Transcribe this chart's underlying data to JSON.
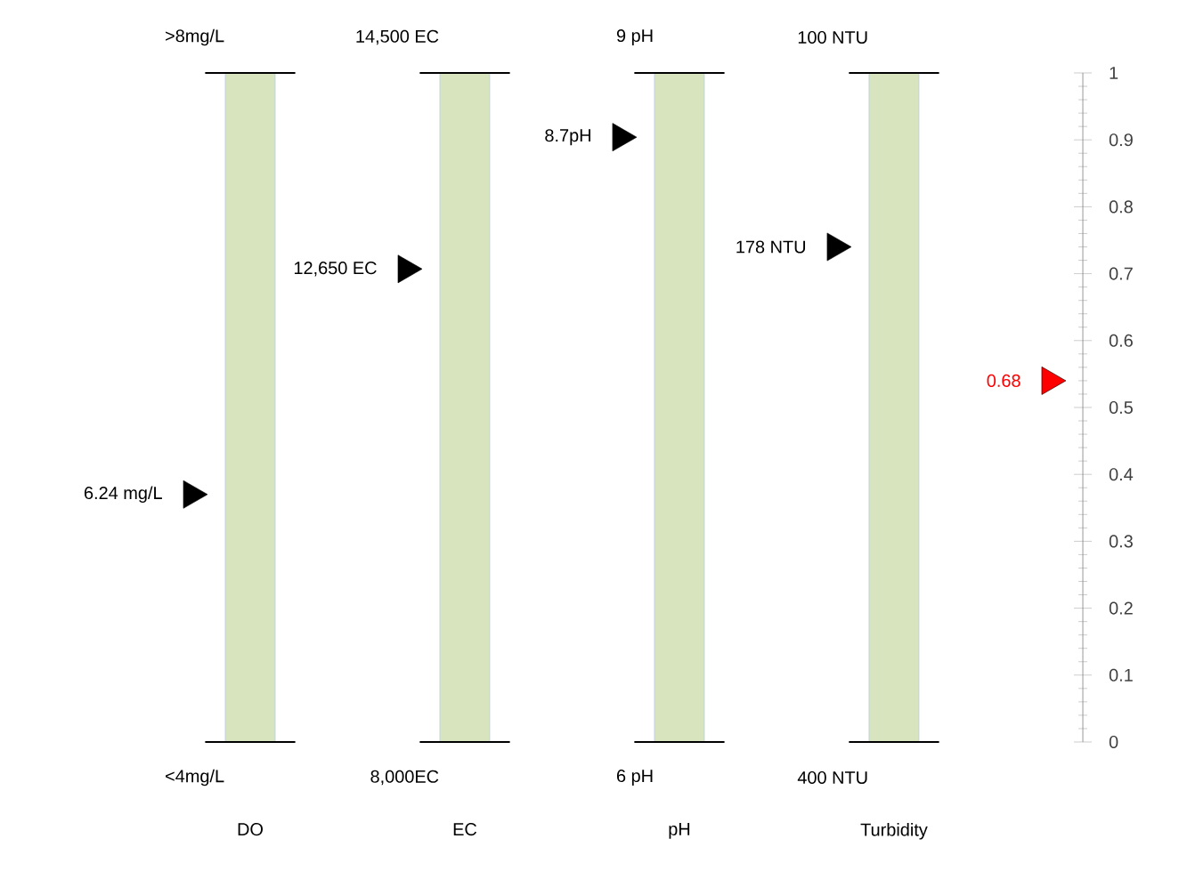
{
  "chart_data": {
    "type": "bar",
    "categories": [
      "DO",
      "EC",
      "pH",
      "Turbidity",
      null
    ],
    "ylim": [
      0,
      1
    ],
    "yticks": [
      0,
      0.1,
      0.2,
      0.3,
      0.4,
      0.5,
      0.6,
      0.7,
      0.8,
      0.9,
      1
    ],
    "series": [
      {
        "type": "bar",
        "color": "#d7e4bd",
        "values": [
          1,
          1,
          1,
          1,
          null
        ]
      },
      {
        "type": "scatter",
        "marker": "triangle",
        "colors": [
          "#000000",
          "#000000",
          "#000000",
          "#000000",
          "#ff0000"
        ],
        "values": [
          0.37,
          0.707,
          0.904,
          0.74,
          0.54
        ]
      }
    ],
    "annotations": [
      {
        "text": ">8mg/L",
        "x": "DO",
        "y": 1
      },
      {
        "text": "<4mg/L",
        "x": "DO",
        "y": 0
      },
      {
        "text": "14,500 EC",
        "x": "EC",
        "y": 1
      },
      {
        "text": "8,000EC",
        "x": "EC",
        "y": 0
      },
      {
        "text": "9 pH",
        "x": "pH",
        "y": 1
      },
      {
        "text": "6 pH",
        "x": "pH",
        "y": 0
      },
      {
        "text": "100 NTU",
        "x": "Turbidity",
        "y": 1
      },
      {
        "text": "400 NTU",
        "x": "Turbidity",
        "y": 0
      },
      "6.24 mg/L",
      "12,650 EC",
      "8.7pH",
      "178 NTU",
      "0.68"
    ]
  }
}
